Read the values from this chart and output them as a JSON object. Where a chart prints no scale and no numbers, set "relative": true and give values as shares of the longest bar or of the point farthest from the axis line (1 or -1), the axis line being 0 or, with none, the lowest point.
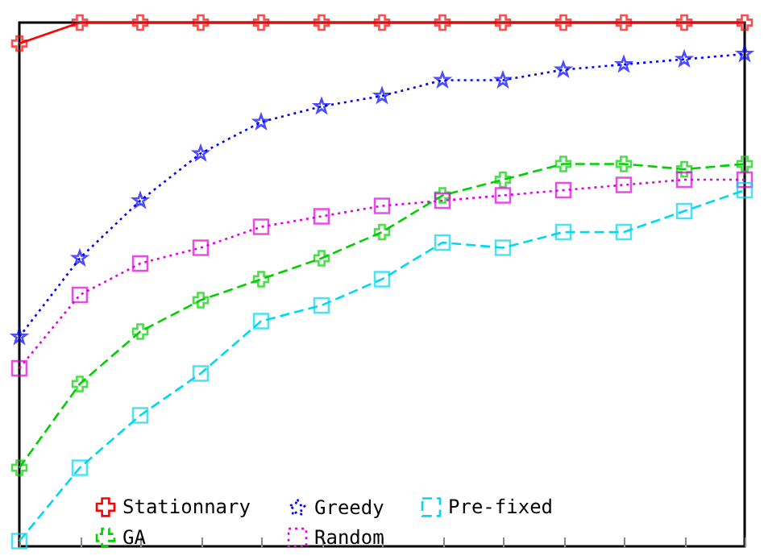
{
  "chart_data": {
    "type": "line",
    "relative": true,
    "legend": "bottom",
    "grid": false,
    "categories": [
      null,
      null,
      null,
      null,
      null,
      null,
      null,
      null,
      null,
      null,
      null,
      null,
      null
    ],
    "series": [
      {
        "name": "Stationnary",
        "color": "#ff0000",
        "marker": "cross",
        "line_style": "solid",
        "values": [
          0.96,
          1,
          1,
          1,
          1,
          1,
          1,
          1,
          1,
          1,
          1,
          1,
          1
        ]
      },
      {
        "name": "GA",
        "color": "#00d000",
        "marker": "cross",
        "line_style": "dashed",
        "values": [
          0.15,
          0.31,
          0.41,
          0.47,
          0.51,
          0.55,
          0.6,
          0.67,
          0.7,
          0.73,
          0.73,
          0.72,
          0.73
        ]
      },
      {
        "name": "Greedy",
        "color": "#0000ff",
        "marker": "star",
        "line_style": "dotted",
        "values": [
          0.4,
          0.55,
          0.66,
          0.75,
          0.81,
          0.84,
          0.86,
          0.89,
          0.89,
          0.91,
          0.92,
          0.93,
          0.94
        ]
      },
      {
        "name": "Random",
        "color": "#e000e0",
        "marker": "square",
        "line_style": "dotted",
        "values": [
          0.34,
          0.48,
          0.54,
          0.57,
          0.61,
          0.63,
          0.65,
          0.66,
          0.67,
          0.68,
          0.69,
          0.7,
          0.7
        ]
      },
      {
        "name": "Pre-fixed",
        "color": "#00d8f0",
        "marker": "square",
        "line_style": "dashed",
        "values": [
          0.01,
          0.15,
          0.25,
          0.33,
          0.43,
          0.46,
          0.51,
          0.58,
          0.57,
          0.6,
          0.6,
          0.64,
          0.68
        ]
      }
    ]
  }
}
